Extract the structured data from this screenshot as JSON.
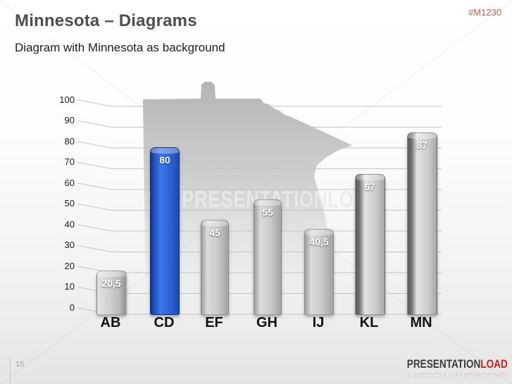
{
  "header": {
    "title": "Minnesota – Diagrams",
    "subtitle": "Diagram with Minnesota as background",
    "code": "#M1230",
    "code_color": "#d05a50",
    "title_color": "#4e4e4e"
  },
  "chart_data": {
    "type": "bar",
    "categories": [
      "AB",
      "CD",
      "EF",
      "GH",
      "IJ",
      "KL",
      "MN"
    ],
    "values": [
      20.5,
      80,
      45,
      55,
      40.5,
      67,
      87
    ],
    "value_labels": [
      "20,5",
      "80",
      "45",
      "55",
      "40,5",
      "67",
      "87"
    ],
    "highlight_index": 1,
    "highlight_color": "#2a62d2",
    "bar_color": "#c6c6c6",
    "value_label_color": "#ffffff",
    "ylim": [
      0,
      100
    ],
    "yticks": [
      0,
      10,
      20,
      30,
      40,
      50,
      60,
      70,
      80,
      90,
      100
    ],
    "grid": true,
    "grid_color": "#c4c4c4",
    "style": "3d-perspective",
    "background": "minnesota-state-silhouette",
    "title": "",
    "xlabel": "",
    "ylabel": ""
  },
  "watermark": {
    "text": "PRESENTATIONLOAD",
    "logo": "presentationload-p-logo"
  },
  "footer": {
    "page_number": "15",
    "brand_part1": "PRESENTATION",
    "brand_part2": "LOAD",
    "brand_color1": "#3d3d3d",
    "brand_color2": "#c9201d"
  }
}
